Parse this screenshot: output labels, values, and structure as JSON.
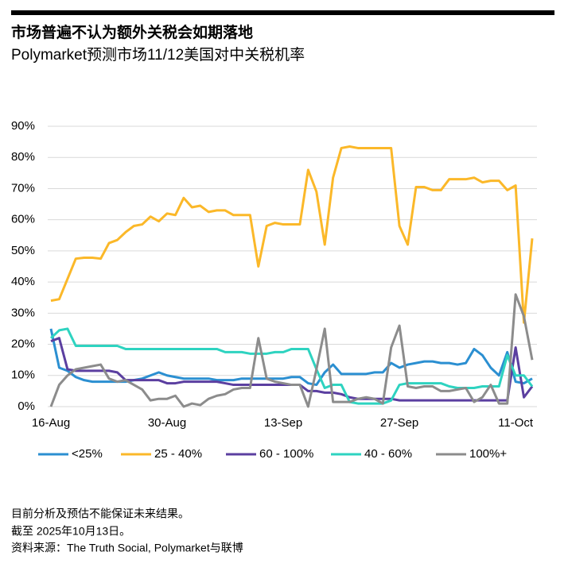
{
  "chart_data": {
    "type": "line",
    "title": "市场普遍不认为额外关税会如期落地",
    "subtitle": "Polymarket预测市场11/12美国对中关税机率",
    "categories": [
      "16-Aug",
      null,
      null,
      null,
      null,
      null,
      null,
      null,
      null,
      null,
      null,
      null,
      null,
      null,
      "30-Aug",
      null,
      null,
      null,
      null,
      null,
      null,
      null,
      null,
      null,
      null,
      null,
      null,
      null,
      "13-Sep",
      null,
      null,
      null,
      null,
      null,
      null,
      null,
      null,
      null,
      null,
      null,
      null,
      null,
      "27-Sep",
      null,
      null,
      null,
      null,
      null,
      null,
      null,
      null,
      null,
      null,
      null,
      null,
      null,
      "11-Oct",
      null,
      null
    ],
    "series": [
      {
        "name": "<25%",
        "color": "#2b8fd1",
        "values": [
          25,
          12.5,
          11.5,
          9.5,
          8.5,
          8,
          8,
          8,
          8,
          8,
          8.5,
          9,
          10,
          11,
          10,
          9.5,
          9,
          9,
          9,
          9,
          8.5,
          8.5,
          8.5,
          9,
          9,
          9,
          9,
          9,
          9,
          9.5,
          9.5,
          7.5,
          7,
          11,
          13.5,
          10.5,
          10.5,
          10.5,
          10.5,
          11,
          11,
          14,
          12.5,
          13.5,
          14,
          14.5,
          14.5,
          14,
          14,
          13.5,
          14,
          18.5,
          16.5,
          12.5,
          10,
          17.5,
          8,
          7.5,
          9
        ]
      },
      {
        "name": "25 - 40%",
        "color": "#fbb829",
        "values": [
          34,
          34.5,
          41,
          47.5,
          47.8,
          47.8,
          47.5,
          52.5,
          53.5,
          56,
          58,
          58.5,
          61,
          59.5,
          62,
          61.5,
          67,
          64,
          64.5,
          62.5,
          63,
          63,
          61.5,
          61.5,
          61.5,
          45,
          58,
          59,
          58.5,
          58.5,
          58.5,
          76,
          69,
          52,
          73.5,
          83,
          83.5,
          83,
          83,
          83,
          83,
          83,
          58,
          52,
          70.5,
          70.5,
          69.5,
          69.5,
          73,
          73,
          73,
          73.5,
          72,
          72.5,
          72.5,
          69.5,
          71,
          27,
          54
        ]
      },
      {
        "name": "60 - 100%",
        "color": "#5b3fa0",
        "values": [
          21,
          22,
          12,
          11.5,
          11.5,
          11.5,
          11.5,
          11.5,
          11,
          8.5,
          8.5,
          8.5,
          8.5,
          8.5,
          7.5,
          7.5,
          8,
          8,
          8,
          8,
          8,
          7.5,
          7,
          7,
          7,
          7,
          7,
          7,
          7,
          7,
          7,
          5,
          5,
          4.5,
          4.5,
          4,
          3,
          2.5,
          2.5,
          2.5,
          2.5,
          2.5,
          2,
          2,
          2,
          2,
          2,
          2,
          2,
          2,
          2,
          2,
          2,
          2,
          2,
          2,
          19,
          3,
          6.5
        ]
      },
      {
        "name": "40 - 60%",
        "color": "#2ed3c0",
        "values": [
          22,
          24.5,
          25,
          19.5,
          19.5,
          19.5,
          19.5,
          19.5,
          19.5,
          18.5,
          18.5,
          18.5,
          18.5,
          18.5,
          18.5,
          18.5,
          18.5,
          18.5,
          18.5,
          18.5,
          18.5,
          17.5,
          17.5,
          17.5,
          17,
          17,
          17,
          17.5,
          17.5,
          18.5,
          18.5,
          18.5,
          12,
          6,
          7,
          7,
          1.5,
          1,
          1,
          1,
          1,
          2,
          7,
          7.5,
          7.5,
          7.5,
          7.5,
          7.5,
          6.5,
          6,
          6,
          6,
          6.5,
          6.5,
          6.5,
          16.5,
          10,
          10,
          6.5
        ]
      },
      {
        "name": "100%+",
        "color": "#8c8c8c",
        "values": [
          0,
          7,
          10,
          12,
          12.5,
          13,
          13.5,
          9,
          8,
          8.5,
          7,
          5.5,
          2,
          2.5,
          2.5,
          3.5,
          0,
          1,
          0.5,
          2.5,
          3.5,
          4,
          5.5,
          6,
          6,
          22,
          9,
          8,
          7.5,
          7,
          7,
          0,
          12,
          25,
          1.5,
          1.5,
          1.5,
          2.5,
          3,
          2.5,
          1,
          19,
          26,
          6.5,
          6,
          6.5,
          6.5,
          5,
          5,
          5.5,
          6,
          1.5,
          3,
          7,
          1,
          1,
          36,
          29,
          15
        ]
      }
    ],
    "ylim": [
      0,
      90
    ],
    "yticks": [
      {
        "value": 0,
        "label": "0%"
      },
      {
        "value": 10,
        "label": "10%"
      },
      {
        "value": 20,
        "label": "20%"
      },
      {
        "value": 30,
        "label": "30%"
      },
      {
        "value": 40,
        "label": "40%"
      },
      {
        "value": 50,
        "label": "50%"
      },
      {
        "value": 60,
        "label": "60%"
      },
      {
        "value": 70,
        "label": "70%"
      },
      {
        "value": 80,
        "label": "80%"
      },
      {
        "value": 90,
        "label": "90%"
      }
    ],
    "grid": true,
    "notes": [
      "目前分析及预估不能保证未来结果。",
      "截至 2025年10月13日。",
      "资料来源：The Truth Social, Polymarket与联博"
    ]
  }
}
